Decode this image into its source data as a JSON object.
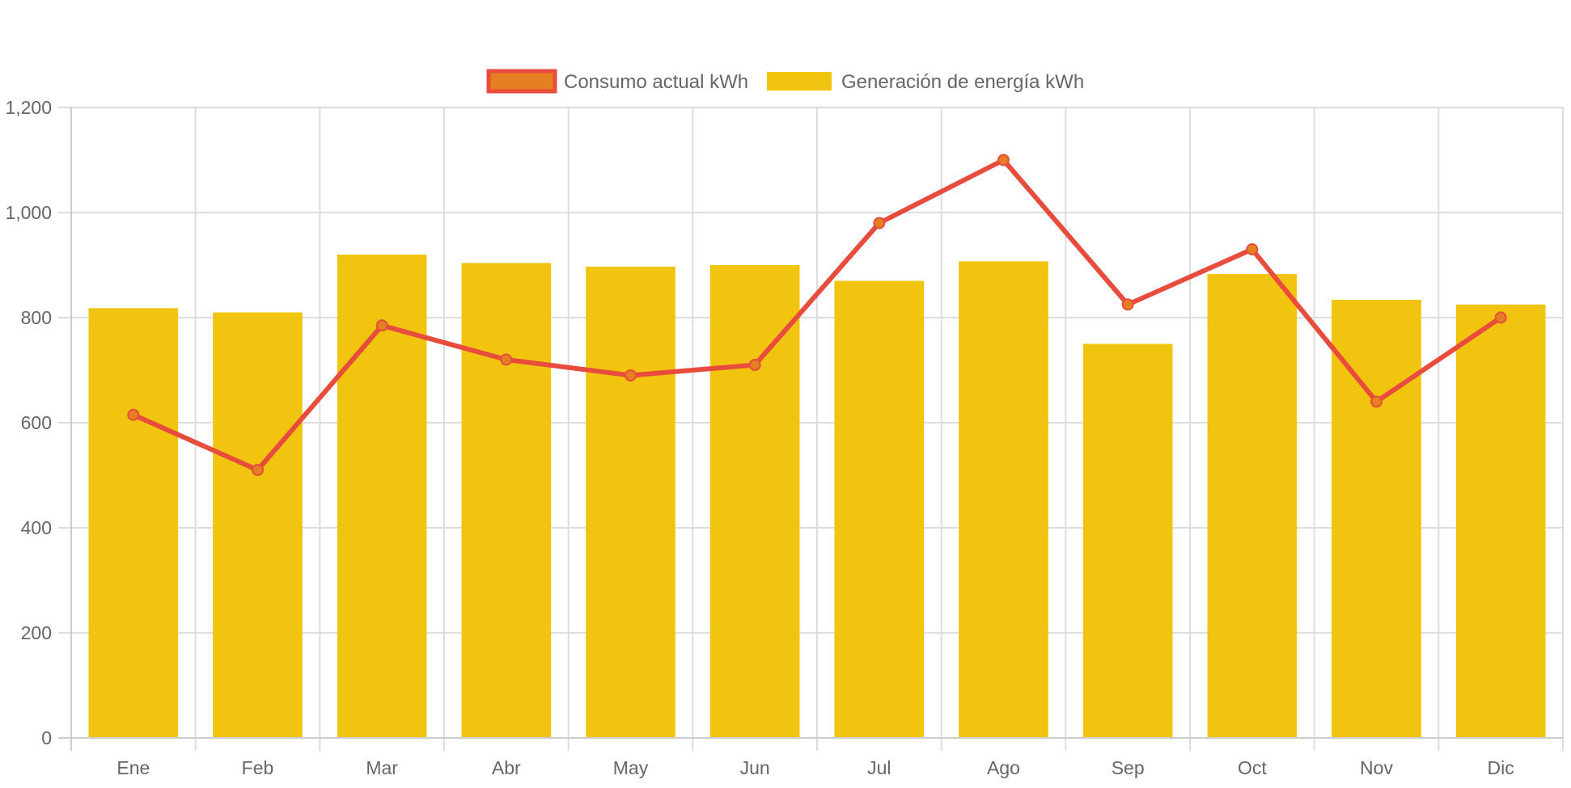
{
  "chart_data": {
    "type": "bar",
    "title": "",
    "xlabel": "",
    "ylabel": "",
    "categories": [
      "Ene",
      "Feb",
      "Mar",
      "Abr",
      "May",
      "Jun",
      "Jul",
      "Ago",
      "Sep",
      "Oct",
      "Nov",
      "Dic"
    ],
    "ylim": [
      0,
      1200
    ],
    "yticks": [
      0,
      200,
      400,
      600,
      800,
      1000,
      1200
    ],
    "ytick_labels": [
      "0",
      "200",
      "400",
      "600",
      "800",
      "1,000",
      "1,200"
    ],
    "grid": true,
    "legend_position": "top-center",
    "series": [
      {
        "name": "Consumo actual kWh",
        "type": "line",
        "color": "#e74c3c",
        "marker_fill": "#e67e22",
        "values": [
          615,
          510,
          785,
          720,
          690,
          710,
          980,
          1100,
          825,
          930,
          640,
          800
        ]
      },
      {
        "name": "Generación de energía kWh",
        "type": "bar",
        "color": "#f1c40f",
        "values": [
          818,
          810,
          920,
          904,
          897,
          900,
          870,
          907,
          750,
          883,
          834,
          825
        ]
      }
    ]
  },
  "colors": {
    "grid": "#dddddd",
    "axis_text": "#666666"
  }
}
